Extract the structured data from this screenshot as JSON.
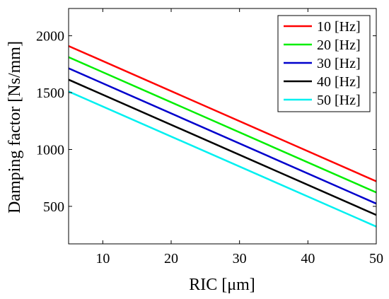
{
  "chart_data": {
    "type": "line",
    "xlabel": "RIC [μm]",
    "ylabel": "Damping factor [Ns/mm]",
    "xlim": [
      5,
      50
    ],
    "ylim": [
      170,
      2240
    ],
    "xticks": [
      10,
      20,
      30,
      40,
      50
    ],
    "yticks": [
      500,
      1000,
      1500,
      2000
    ],
    "grid": false,
    "legend_position": "top-right",
    "series": [
      {
        "name": "10 [Hz]",
        "color": "#ff0000",
        "x": [
          5,
          50
        ],
        "y": [
          1910,
          720
        ]
      },
      {
        "name": "20 [Hz]",
        "color": "#00ee00",
        "x": [
          5,
          50
        ],
        "y": [
          1812,
          622
        ]
      },
      {
        "name": "30 [Hz]",
        "color": "#0000cc",
        "x": [
          5,
          50
        ],
        "y": [
          1714,
          524
        ]
      },
      {
        "name": "40 [Hz]",
        "color": "#000000",
        "x": [
          5,
          50
        ],
        "y": [
          1614,
          424
        ]
      },
      {
        "name": "50 [Hz]",
        "color": "#00f0f0",
        "x": [
          5,
          50
        ],
        "y": [
          1510,
          322
        ]
      }
    ]
  }
}
